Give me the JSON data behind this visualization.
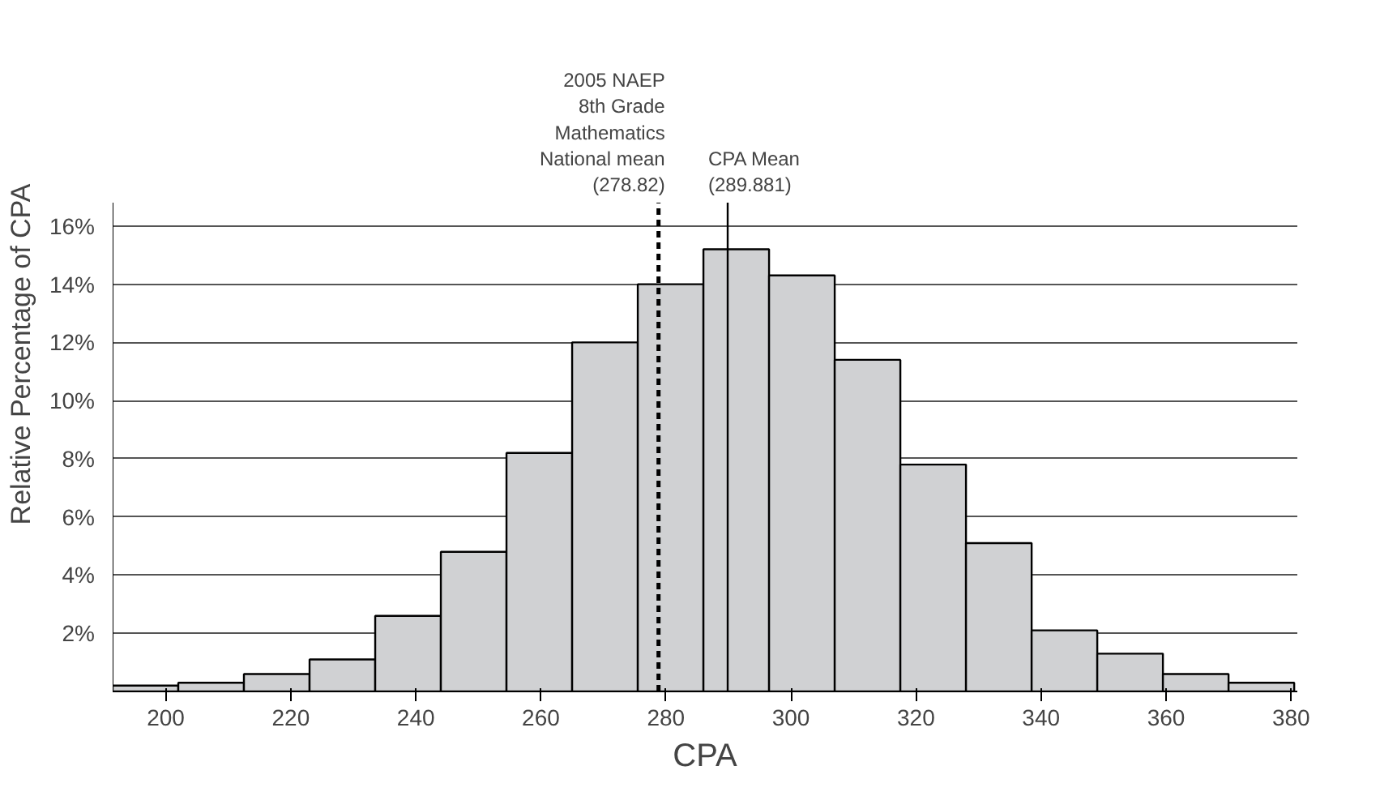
{
  "chart_data": {
    "type": "histogram",
    "xlabel": "CPA",
    "ylabel": "Relative Percentage of CPA",
    "bins": [
      191.5,
      202,
      212.5,
      223,
      233.5,
      244,
      254.5,
      265,
      275.5,
      286,
      296.5,
      307,
      317.5,
      328,
      338.5,
      349,
      359.5,
      370,
      380.5
    ],
    "values": [
      0.2,
      0.3,
      0.6,
      1.1,
      2.6,
      4.8,
      8.2,
      12.0,
      14.0,
      15.2,
      14.3,
      11.4,
      7.8,
      5.1,
      2.1,
      1.3,
      0.6,
      0.3
    ],
    "color": "#d0d1d3",
    "xlim": [
      191.5,
      381
    ],
    "xticks": [
      200,
      220,
      240,
      260,
      280,
      300,
      320,
      340,
      360,
      380
    ],
    "ylim": [
      0,
      16.8
    ],
    "yticks": [
      {
        "value": 2,
        "label": "2%"
      },
      {
        "value": 4,
        "label": "4%"
      },
      {
        "value": 6,
        "label": "6%"
      },
      {
        "value": 8,
        "label": "8%"
      },
      {
        "value": 10,
        "label": "10%"
      },
      {
        "value": 12,
        "label": "12%"
      },
      {
        "value": 14,
        "label": "14%"
      },
      {
        "value": 16,
        "label": "16%"
      }
    ],
    "grid": "y",
    "ref_lines": [
      {
        "axis": "x",
        "value": 278.82,
        "label": "2005 NAEP\n8th Grade\nMathematics\nNational mean\n(278.82)",
        "line_style": "dashed",
        "color": "#000000"
      },
      {
        "axis": "x",
        "value": 289.881,
        "label": "CPA Mean\n(289.881)",
        "line_style": "solid",
        "color": "#000000"
      }
    ]
  }
}
